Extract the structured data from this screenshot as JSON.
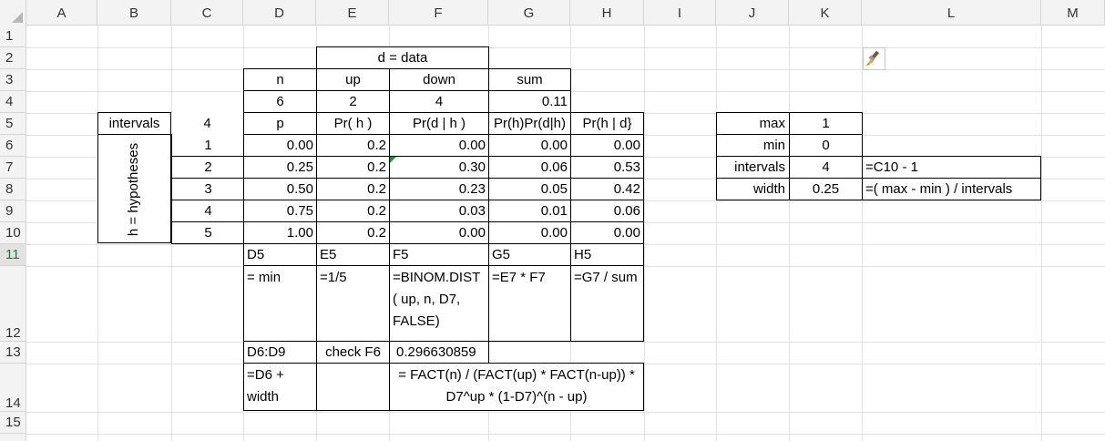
{
  "columns": [
    "A",
    "B",
    "C",
    "D",
    "E",
    "F",
    "G",
    "H",
    "I",
    "J",
    "K",
    "L",
    "M"
  ],
  "rows": [
    "1",
    "2",
    "3",
    "4",
    "5",
    "6",
    "7",
    "8",
    "9",
    "10",
    "11",
    "12",
    "13",
    "14",
    "15"
  ],
  "selected_row": "11",
  "table": {
    "data_title": "d = data",
    "headers1": {
      "n": "n",
      "up": "up",
      "down": "down",
      "sum": "sum"
    },
    "values1": {
      "n": "6",
      "up": "2",
      "down": "4",
      "sum": "0.11"
    },
    "intervals_label": "intervals",
    "intervals_value": "4",
    "headers2": {
      "p": "p",
      "prh": "Pr( h )",
      "prdh": "Pr(d | h )",
      "prod": "Pr(h)Pr(d|h)",
      "post": "Pr(h | d}"
    },
    "hyp_label": "h = hypotheses",
    "rows": [
      {
        "h": "1",
        "p": "0.00",
        "prh": "0.2",
        "prdh": "0.00",
        "prod": "0.00",
        "post": "0.00"
      },
      {
        "h": "2",
        "p": "0.25",
        "prh": "0.2",
        "prdh": "0.30",
        "prod": "0.06",
        "post": "0.53"
      },
      {
        "h": "3",
        "p": "0.50",
        "prh": "0.2",
        "prdh": "0.23",
        "prod": "0.05",
        "post": "0.42"
      },
      {
        "h": "4",
        "p": "0.75",
        "prh": "0.2",
        "prdh": "0.03",
        "prod": "0.01",
        "post": "0.06"
      },
      {
        "h": "5",
        "p": "1.00",
        "prh": "0.2",
        "prdh": "0.00",
        "prod": "0.00",
        "post": "0.00"
      }
    ]
  },
  "notes": {
    "d5": "D5",
    "e5": "E5",
    "f5": "F5",
    "g5": "G5",
    "h5": "H5",
    "d_formula": "= min",
    "e_formula": "=1/5",
    "f_formula": "=BINOM.DIST ( up, n, D7, FALSE)",
    "g_formula": "=E7 * F7",
    "h_formula": "=G7 / sum",
    "d6d9": "D6:D9",
    "check": "check F6",
    "check_value": "0.296630859",
    "d_fill": "=D6 + width",
    "fact_formula": "= FACT(n) / (FACT(up) * FACT(n-up)) * D7^up * (1-D7)^(n - up)"
  },
  "params": {
    "max_label": "max",
    "max_value": "1",
    "min_label": "min",
    "min_value": "0",
    "intervals_label": "intervals",
    "intervals_value": "4",
    "intervals_formula": "=C10 - 1",
    "width_label": "width",
    "width_value": "0.25",
    "width_formula": "=( max - min ) / intervals"
  },
  "icons": {
    "paintbrush": "paintbrush-icon"
  },
  "colors": {
    "grid": "#e1e1e1",
    "header_bg": "#f3f3f3",
    "selected_row": "#217346",
    "error_triangle": "#1e8f3e"
  }
}
